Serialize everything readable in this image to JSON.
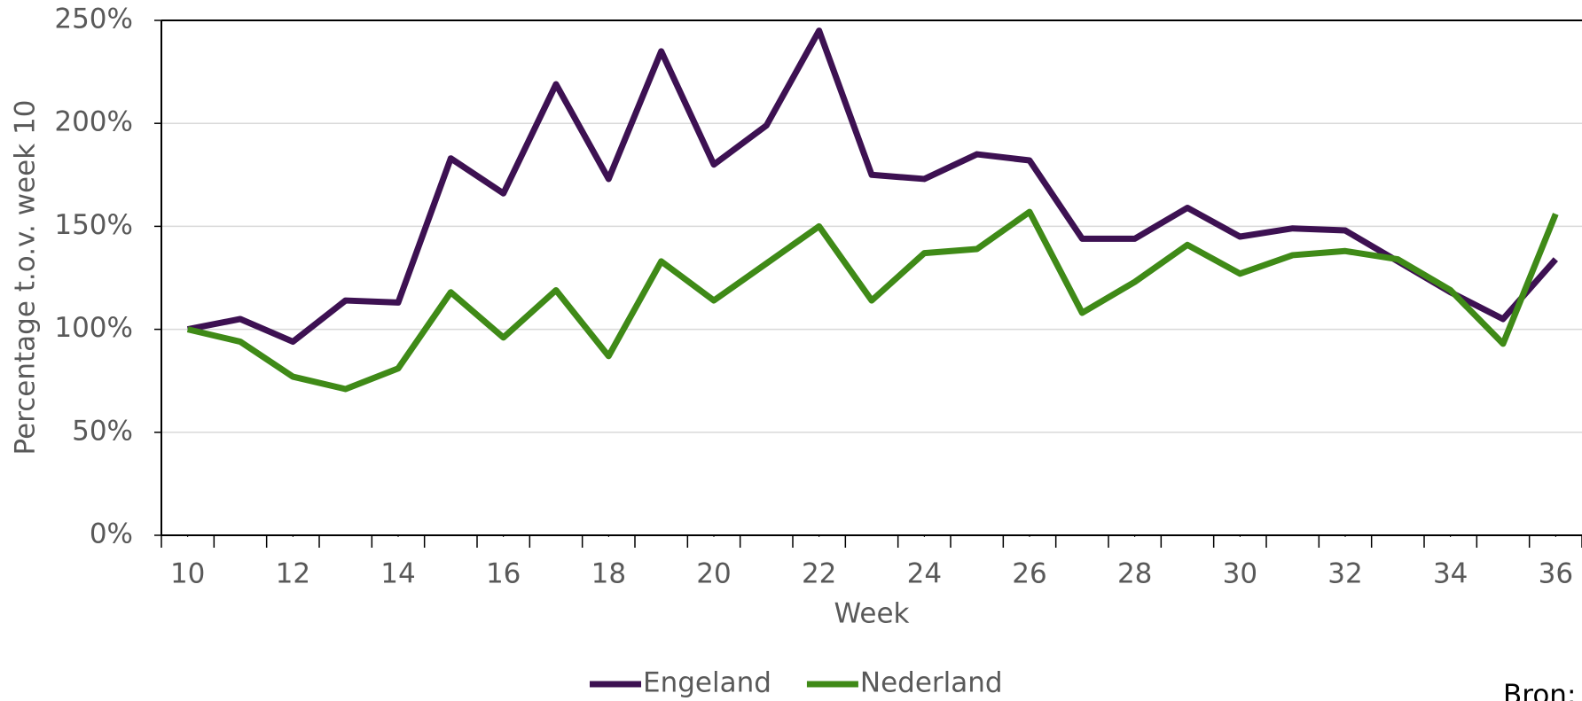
{
  "chart_data": {
    "type": "line",
    "x_label": "Week",
    "y_label": "Percentage t.o.v. week 10",
    "annotation": "Bron:",
    "x": [
      10,
      11,
      12,
      13,
      14,
      15,
      16,
      17,
      18,
      19,
      20,
      21,
      22,
      23,
      24,
      25,
      26,
      27,
      28,
      29,
      30,
      31,
      32,
      33,
      34,
      35,
      36
    ],
    "series": [
      {
        "name": "Engeland",
        "color": "#3d1152",
        "values": [
          100,
          105,
          94,
          114,
          113,
          183,
          166,
          219,
          173,
          235,
          180,
          199,
          245,
          175,
          173,
          185,
          182,
          144,
          144,
          159,
          145,
          149,
          148,
          133,
          118,
          105,
          134
        ]
      },
      {
        "name": "Nederland",
        "color": "#3f8a17",
        "values": [
          100,
          94,
          77,
          71,
          81,
          118,
          96,
          119,
          87,
          133,
          114,
          132,
          150,
          114,
          137,
          139,
          157,
          108,
          123,
          141,
          127,
          136,
          138,
          134,
          119,
          93,
          156
        ]
      }
    ],
    "xlim": [
      9.5,
      36.5
    ],
    "xticks": [
      10,
      12,
      14,
      16,
      18,
      20,
      22,
      24,
      26,
      28,
      30,
      32,
      34,
      36
    ],
    "ylim": [
      0,
      250
    ],
    "yticks": [
      {
        "value": 0,
        "label": "0%"
      },
      {
        "value": 50,
        "label": "50%"
      },
      {
        "value": 100,
        "label": "100%"
      },
      {
        "value": 150,
        "label": "150%"
      },
      {
        "value": 200,
        "label": "200%"
      },
      {
        "value": 250,
        "label": "250%"
      }
    ],
    "grid": true,
    "legend": "bottom"
  }
}
